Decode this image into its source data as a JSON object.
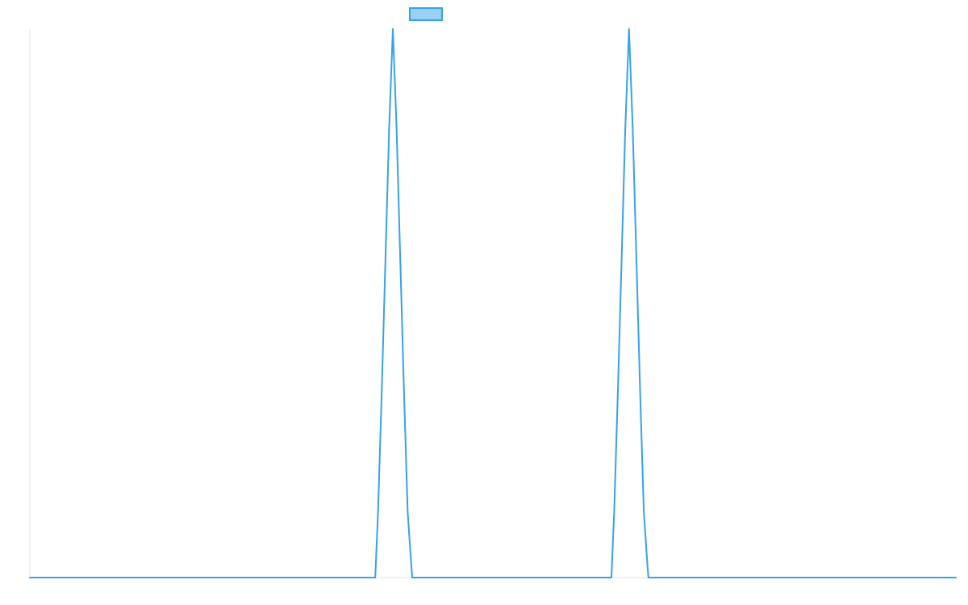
{
  "chart_data": {
    "type": "line",
    "title": "",
    "xlabel": "",
    "ylabel": "",
    "grid": false,
    "legend": {
      "placement": "top-center",
      "label": ""
    },
    "xlim": [
      0,
      100
    ],
    "ylim": [
      0,
      1
    ],
    "colors": {
      "line": "#36a2eb",
      "legend_fill": "#9ad0f5",
      "axis": "#e6e6e6"
    },
    "series": [
      {
        "x": [
          0,
          37.3,
          37.6,
          38.0,
          38.4,
          38.8,
          39.2,
          39.6,
          40.0,
          40.4,
          40.8,
          41.2,
          41.3,
          62.8,
          63.1,
          63.5,
          63.9,
          64.3,
          64.7,
          65.1,
          65.5,
          65.9,
          66.3,
          66.7,
          66.8,
          100
        ],
        "values": [
          0,
          0,
          0.12,
          0.34,
          0.58,
          0.82,
          1.0,
          0.82,
          0.58,
          0.34,
          0.12,
          0.02,
          0,
          0,
          0.12,
          0.34,
          0.58,
          0.82,
          1.0,
          0.82,
          0.58,
          0.34,
          0.12,
          0.02,
          0,
          0
        ]
      }
    ]
  }
}
